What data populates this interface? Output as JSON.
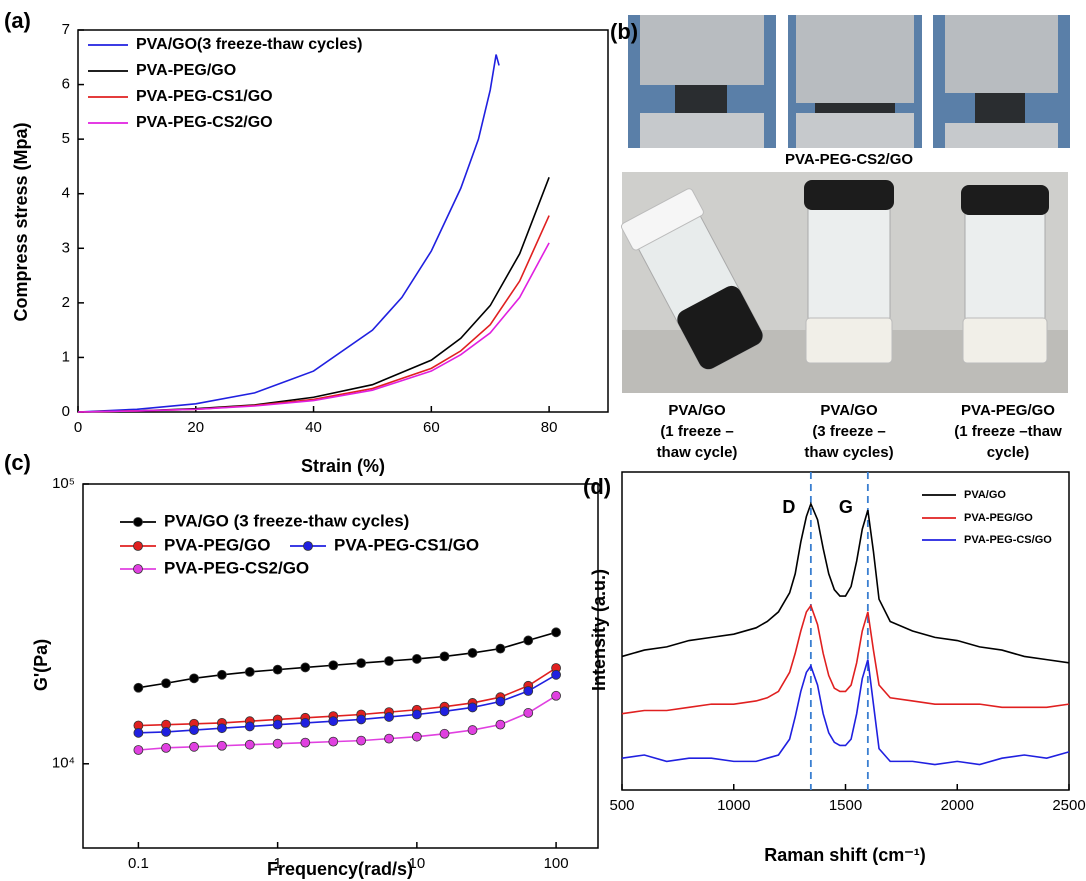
{
  "chart_data": [
    {
      "type": "line",
      "label": "(a)",
      "xlabel": "Strain (%)",
      "ylabel": "Compress stress (Mpa)",
      "xlim": [
        0,
        90
      ],
      "xticks": [
        0,
        20,
        40,
        60,
        80
      ],
      "ylim": [
        0,
        7
      ],
      "yticks": [
        0,
        1,
        2,
        3,
        4,
        5,
        6,
        7
      ],
      "series": [
        {
          "name": "PVA/GO(3 freeze-thaw cycles)",
          "color": "#2020e0",
          "x": [
            0,
            10,
            20,
            30,
            40,
            50,
            55,
            60,
            65,
            68,
            70,
            71,
            71.5
          ],
          "values": [
            0,
            0.05,
            0.15,
            0.35,
            0.75,
            1.5,
            2.1,
            2.95,
            4.1,
            5.0,
            5.9,
            6.55,
            6.35
          ]
        },
        {
          "name": "PVA-PEG/GO",
          "color": "#000000",
          "x": [
            0,
            10,
            20,
            30,
            40,
            50,
            60,
            65,
            70,
            75,
            80
          ],
          "values": [
            0,
            0.02,
            0.06,
            0.13,
            0.27,
            0.5,
            0.95,
            1.35,
            1.95,
            2.9,
            4.3
          ]
        },
        {
          "name": "PVA-PEG-CS1/GO",
          "color": "#e02020",
          "x": [
            0,
            10,
            20,
            30,
            40,
            50,
            60,
            65,
            70,
            75,
            80
          ],
          "values": [
            0,
            0.02,
            0.05,
            0.12,
            0.23,
            0.43,
            0.8,
            1.12,
            1.6,
            2.4,
            3.6
          ]
        },
        {
          "name": "PVA-PEG-CS2/GO",
          "color": "#e020e0",
          "x": [
            0,
            10,
            20,
            30,
            40,
            50,
            60,
            65,
            70,
            75,
            80
          ],
          "values": [
            0,
            0.02,
            0.05,
            0.11,
            0.21,
            0.4,
            0.75,
            1.05,
            1.45,
            2.1,
            3.1
          ]
        }
      ]
    },
    {
      "type": "line",
      "label": "(c)",
      "xlabel": "Frequency(rad/s)",
      "ylabel": "G'(Pa)",
      "xscale": "log",
      "yscale": "log",
      "markers": true,
      "xlim": [
        0.04,
        200
      ],
      "xticks": [
        0.1,
        1,
        10,
        100
      ],
      "ylim": [
        5000,
        100000
      ],
      "yticks": [
        {
          "value": 10000,
          "label": "10⁴"
        },
        {
          "value": 100000,
          "label": "10⁵"
        }
      ],
      "x": [
        0.1,
        0.158,
        0.251,
        0.398,
        0.631,
        1,
        1.58,
        2.51,
        3.98,
        6.31,
        10,
        15.8,
        25.1,
        39.8,
        63.1,
        100
      ],
      "series": [
        {
          "name": "PVA/GO (3 freeze-thaw cycles)",
          "color": "#000000",
          "values": [
            18700,
            19400,
            20200,
            20800,
            21300,
            21700,
            22100,
            22500,
            22900,
            23300,
            23700,
            24200,
            24900,
            25800,
            27600,
            29500
          ]
        },
        {
          "name": "PVA-PEG/GO",
          "color": "#e02020",
          "values": [
            13700,
            13800,
            13900,
            14000,
            14200,
            14400,
            14600,
            14800,
            15000,
            15300,
            15600,
            16000,
            16500,
            17300,
            19000,
            22000
          ]
        },
        {
          "name": "PVA-PEG-CS1/GO",
          "color": "#2020e0",
          "values": [
            12900,
            13000,
            13200,
            13400,
            13600,
            13800,
            14000,
            14200,
            14400,
            14700,
            15000,
            15400,
            15900,
            16700,
            18200,
            20800
          ]
        },
        {
          "name": "PVA-PEG-CS2/GO",
          "color": "#e040e0",
          "values": [
            11200,
            11400,
            11500,
            11600,
            11700,
            11800,
            11900,
            12000,
            12100,
            12300,
            12500,
            12800,
            13200,
            13800,
            15200,
            17500
          ]
        }
      ]
    },
    {
      "type": "line",
      "label": "(d)",
      "xlabel": "Raman shift (cm⁻¹)",
      "ylabel": "Intensity (a.u.)",
      "xlim": [
        500,
        2500
      ],
      "xticks": [
        500,
        1000,
        1500,
        2000,
        2500
      ],
      "ylim": [
        0,
        100
      ],
      "annotations": [
        {
          "label": "D",
          "x": 1345
        },
        {
          "label": "G",
          "x": 1600
        }
      ],
      "x": [
        500,
        600,
        700,
        800,
        900,
        1000,
        1100,
        1150,
        1200,
        1250,
        1275,
        1300,
        1325,
        1345,
        1375,
        1400,
        1425,
        1450,
        1475,
        1500,
        1525,
        1550,
        1575,
        1600,
        1625,
        1650,
        1700,
        1800,
        1900,
        2000,
        2100,
        2200,
        2300,
        2400,
        2500
      ],
      "series": [
        {
          "name": "PVA/GO",
          "color": "#000000",
          "values": [
            42,
            44,
            45,
            47,
            48,
            49,
            51,
            53,
            56,
            62,
            68,
            78,
            86,
            90,
            85,
            76,
            68,
            63,
            61,
            61,
            64,
            72,
            82,
            88,
            75,
            60,
            53,
            50,
            48,
            47,
            45,
            44,
            42,
            41,
            40
          ]
        },
        {
          "name": "PVA-PEG/GO",
          "color": "#e02020",
          "values": [
            24,
            25,
            25,
            26,
            27,
            27,
            28,
            29,
            31,
            37,
            43,
            50,
            56,
            58,
            52,
            43,
            36,
            32,
            31,
            31,
            33,
            40,
            50,
            56,
            44,
            33,
            29,
            28,
            27,
            27,
            27,
            26,
            26,
            26,
            27
          ]
        },
        {
          "name": "PVA-PEG-CS/GO",
          "color": "#2020e0",
          "values": [
            10,
            11,
            9,
            10,
            10,
            9,
            9,
            10,
            11,
            16,
            23,
            31,
            37,
            39,
            33,
            24,
            18,
            15,
            14,
            14,
            16,
            24,
            35,
            41,
            27,
            13,
            9,
            9,
            8,
            9,
            8,
            10,
            11,
            10,
            12
          ]
        }
      ]
    }
  ],
  "photo_panel": {
    "label": "(b)",
    "caption": "PVA-PEG-CS2/GO",
    "vials": [
      [
        "PVA/GO",
        "(1 freeze –",
        "thaw cycle)"
      ],
      [
        "PVA/GO",
        "(3 freeze –",
        "thaw cycles)"
      ],
      [
        "PVA-PEG/GO",
        "(1 freeze –thaw",
        "cycle)"
      ]
    ]
  }
}
